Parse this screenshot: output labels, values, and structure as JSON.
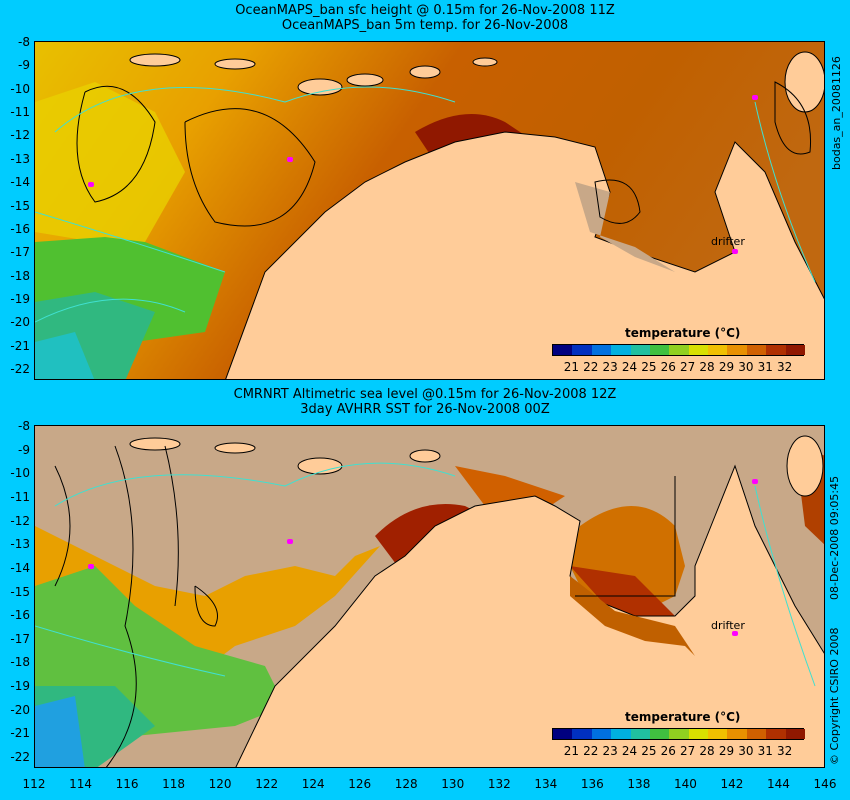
{
  "panels": [
    {
      "title_line1": "OceanMAPS_ban sfc height @ 0.15m for 26-Nov-2008 11Z",
      "title_line2": "OceanMAPS_ban 5m temp. for 26-Nov-2008",
      "side_label": "bodas_an_20081126",
      "drifter_label": "drifter"
    },
    {
      "title_line1": "CMRNRT Altimetric sea level  @0.15m  for 26-Nov-2008 12Z",
      "title_line2": "3day AVHRR SST for 26-Nov-2008 00Z",
      "side_label": "08-Dec-2008 09:05:45",
      "side_label2": "© Copyright CSIRO 2008",
      "drifter_label": "drifter"
    }
  ],
  "y_ticks": [
    "-8",
    "-9",
    "-10",
    "-11",
    "-12",
    "-13",
    "-14",
    "-15",
    "-16",
    "-17",
    "-18",
    "-19",
    "-20",
    "-21",
    "-22"
  ],
  "x_ticks": [
    "112",
    "114",
    "116",
    "118",
    "120",
    "122",
    "124",
    "126",
    "128",
    "130",
    "132",
    "134",
    "136",
    "138",
    "140",
    "142",
    "144",
    "146"
  ],
  "legend": {
    "title": "temperature (°C)",
    "ticks": [
      "21",
      "22",
      "23",
      "24",
      "25",
      "26",
      "27",
      "28",
      "29",
      "30",
      "31",
      "32"
    ],
    "colors": [
      "#000080",
      "#0030c0",
      "#0070e0",
      "#00b0e0",
      "#20c0a0",
      "#40c040",
      "#90d020",
      "#d8e000",
      "#f0c000",
      "#e89000",
      "#d06000",
      "#b03000",
      "#901800"
    ]
  },
  "colors": {
    "background": "#00ccff",
    "land": "#ffcc99",
    "shelf": "#c8a888",
    "drifter": "#ff00ff"
  }
}
